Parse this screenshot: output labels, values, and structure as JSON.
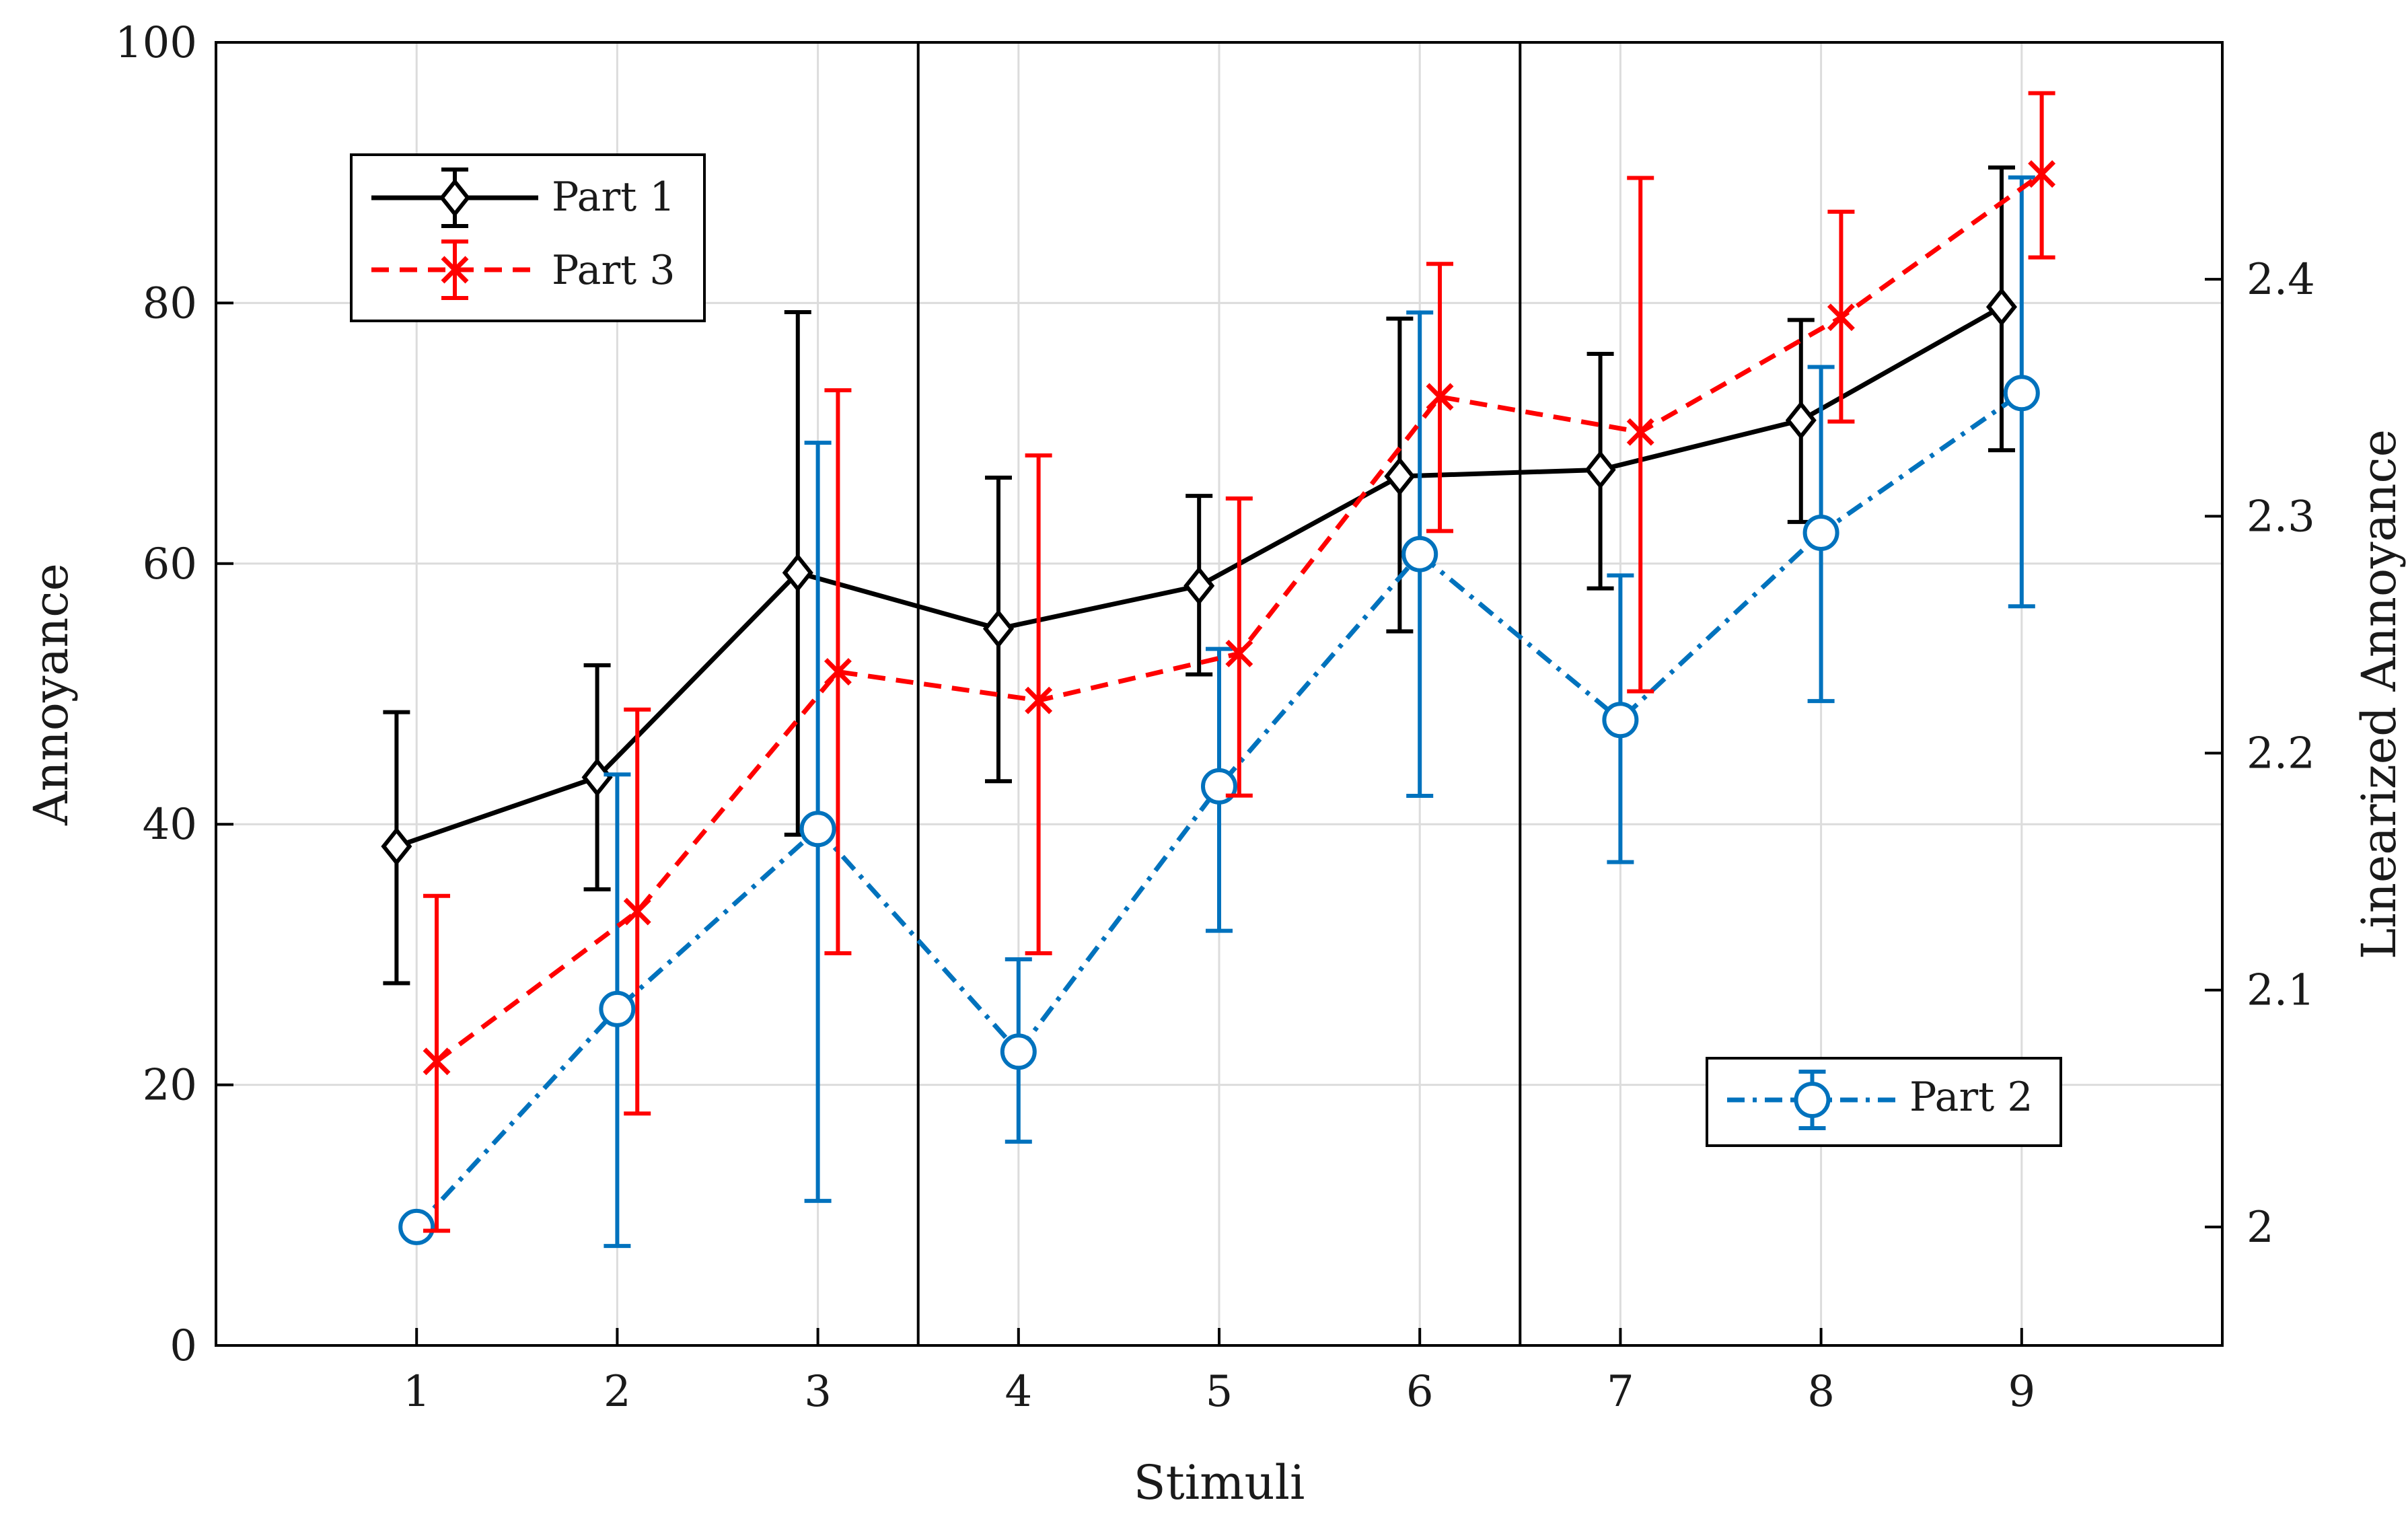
{
  "chart_data": {
    "type": "line",
    "xlabel": "Stimuli",
    "ylabel": "Annoyance",
    "y2label": "Linearized Annoyance",
    "xlim": [
      0,
      10
    ],
    "ylim": [
      0,
      100
    ],
    "y2lim": [
      1.95,
      2.5
    ],
    "x_ticks": [
      1,
      2,
      3,
      4,
      5,
      6,
      7,
      8,
      9
    ],
    "y_ticks": [
      0,
      20,
      40,
      60,
      80,
      100
    ],
    "y2_ticks": [
      "2",
      "2.1",
      "2.2",
      "2.3",
      "2.4"
    ],
    "grid": true,
    "separators_x": [
      3.5,
      6.5
    ],
    "series": [
      {
        "name": "Part 1",
        "axis": "left",
        "color": "#000000",
        "linestyle": "solid",
        "marker": "diamond",
        "x": [
          0.9,
          1.9,
          2.9,
          3.9,
          4.9,
          5.9,
          6.9,
          7.9,
          8.9
        ],
        "values": [
          38.3,
          43.6,
          59.3,
          55.0,
          58.3,
          66.7,
          67.2,
          71.0,
          79.7
        ],
        "lower": [
          27.8,
          35.0,
          39.2,
          43.3,
          51.5,
          54.8,
          58.1,
          63.2,
          68.7
        ],
        "upper": [
          48.6,
          52.2,
          79.3,
          66.6,
          65.2,
          78.8,
          76.1,
          78.7,
          90.4
        ]
      },
      {
        "name": "Part 2",
        "axis": "right",
        "color": "#0072BD",
        "linestyle": "dashdot",
        "marker": "circle",
        "x": [
          1.0,
          2.0,
          3.0,
          4.0,
          5.0,
          6.0,
          7.0,
          8.0,
          9.0
        ],
        "values": [
          2.0,
          2.092,
          2.168,
          2.074,
          2.186,
          2.284,
          2.214,
          2.293,
          2.352
        ],
        "lower": [
          2.0,
          1.992,
          2.011,
          2.036,
          2.125,
          2.182,
          2.154,
          2.222,
          2.262
        ],
        "upper": [
          2.0,
          2.191,
          2.331,
          2.113,
          2.244,
          2.386,
          2.275,
          2.363,
          2.443
        ]
      },
      {
        "name": "Part 3",
        "axis": "left",
        "color": "#FF0000",
        "linestyle": "dashed",
        "marker": "x",
        "x": [
          1.1,
          2.1,
          3.1,
          4.1,
          5.1,
          6.1,
          7.1,
          8.1,
          9.1
        ],
        "values": [
          21.8,
          33.3,
          51.7,
          49.5,
          53.1,
          72.8,
          70.1,
          78.9,
          89.9
        ],
        "lower": [
          8.8,
          17.8,
          30.1,
          30.1,
          42.2,
          62.5,
          50.2,
          70.9,
          83.5
        ],
        "upper": [
          34.5,
          48.8,
          73.3,
          68.3,
          65.0,
          83.0,
          89.6,
          87.0,
          96.1
        ]
      }
    ],
    "legends": [
      {
        "placement": "top-left",
        "entries": [
          "Part 1",
          "Part 3"
        ]
      },
      {
        "placement": "bottom-right",
        "entries": [
          "Part 2"
        ]
      }
    ]
  }
}
